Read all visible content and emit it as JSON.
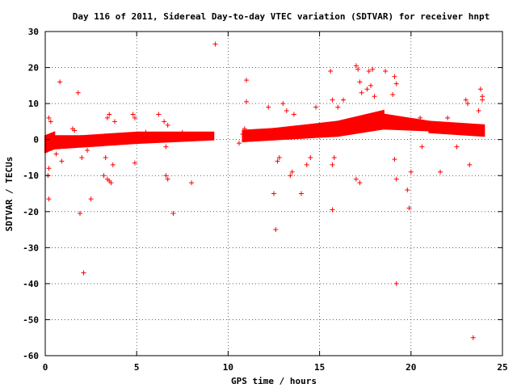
{
  "chart_data": {
    "type": "scatter",
    "title": "Day 116 of 2011, Sidereal Day-to-day VTEC variation (SDTVAR) for receiver hnpt",
    "xlabel": "GPS time / hours",
    "ylabel": "SDTVAR / TECUs",
    "xlim": [
      0,
      25
    ],
    "ylim": [
      -60,
      30
    ],
    "xticks": [
      0,
      5,
      10,
      15,
      20,
      25
    ],
    "yticks": [
      -60,
      -50,
      -40,
      -30,
      -20,
      -10,
      0,
      10,
      20,
      30
    ],
    "grid": true,
    "marker": "+",
    "color": "#ff0000",
    "bands": [
      {
        "x": [
          0.0,
          0.5
        ],
        "y_low": [
          -3.5,
          -2.5
        ],
        "y_high": [
          1.0,
          2.0
        ]
      },
      {
        "x": [
          0.5,
          2.0
        ],
        "y_low": [
          -2.5,
          -2.0
        ],
        "y_high": [
          1.0,
          1.0
        ]
      },
      {
        "x": [
          2.0,
          5.0
        ],
        "y_low": [
          -2.0,
          -1.0
        ],
        "y_high": [
          1.0,
          2.0
        ]
      },
      {
        "x": [
          5.0,
          9.2
        ],
        "y_low": [
          -1.0,
          0.0
        ],
        "y_high": [
          2.0,
          2.0
        ]
      },
      {
        "x": [
          10.8,
          12.5
        ],
        "y_low": [
          -0.5,
          0.0
        ],
        "y_high": [
          2.5,
          3.0
        ]
      },
      {
        "x": [
          12.5,
          16.0
        ],
        "y_low": [
          0.0,
          1.0
        ],
        "y_high": [
          3.0,
          5.0
        ]
      },
      {
        "x": [
          16.0,
          18.5
        ],
        "y_low": [
          1.0,
          3.0
        ],
        "y_high": [
          5.0,
          8.0
        ]
      },
      {
        "x": [
          18.5,
          21.0
        ],
        "y_low": [
          3.0,
          2.5
        ],
        "y_high": [
          7.0,
          5.0
        ]
      },
      {
        "x": [
          21.0,
          24.0
        ],
        "y_low": [
          2.0,
          1.0
        ],
        "y_high": [
          5.0,
          4.0
        ]
      }
    ],
    "points": [
      [
        0.2,
        6
      ],
      [
        0.3,
        5
      ],
      [
        0.1,
        -3
      ],
      [
        0.2,
        -8
      ],
      [
        0.15,
        -10
      ],
      [
        0.2,
        -16.5
      ],
      [
        0.8,
        16
      ],
      [
        0.6,
        -4
      ],
      [
        0.9,
        -6
      ],
      [
        1.8,
        13
      ],
      [
        1.9,
        -20.5
      ],
      [
        2.1,
        -37
      ],
      [
        2.5,
        -16.5
      ],
      [
        1.5,
        3
      ],
      [
        1.6,
        2.5
      ],
      [
        2.0,
        -5
      ],
      [
        2.3,
        -3
      ],
      [
        3.2,
        -10
      ],
      [
        3.4,
        -11
      ],
      [
        3.5,
        -11.5
      ],
      [
        3.6,
        -12
      ],
      [
        3.5,
        7
      ],
      [
        3.4,
        6
      ],
      [
        3.7,
        -7
      ],
      [
        3.3,
        -5
      ],
      [
        3.8,
        5
      ],
      [
        4.8,
        7
      ],
      [
        4.9,
        6
      ],
      [
        4.9,
        -6.5
      ],
      [
        5.5,
        2
      ],
      [
        6.2,
        7
      ],
      [
        6.5,
        5
      ],
      [
        6.6,
        -2
      ],
      [
        6.7,
        4
      ],
      [
        6.6,
        -10
      ],
      [
        6.7,
        -11
      ],
      [
        7.0,
        -20.5
      ],
      [
        8.0,
        -12
      ],
      [
        7.2,
        0.5
      ],
      [
        7.5,
        2
      ],
      [
        9.3,
        26.5
      ],
      [
        10.6,
        -1
      ],
      [
        10.8,
        1.5
      ],
      [
        11.0,
        16.5
      ],
      [
        11.0,
        10.5
      ],
      [
        10.9,
        3
      ],
      [
        12.2,
        9
      ],
      [
        12.5,
        -15
      ],
      [
        12.6,
        -25
      ],
      [
        12.7,
        -6
      ],
      [
        12.8,
        -5
      ],
      [
        13.0,
        10
      ],
      [
        13.2,
        8
      ],
      [
        13.4,
        -10
      ],
      [
        13.5,
        -9
      ],
      [
        13.6,
        7
      ],
      [
        14.0,
        -15
      ],
      [
        14.3,
        -7
      ],
      [
        14.5,
        -5
      ],
      [
        14.8,
        9
      ],
      [
        15.6,
        19
      ],
      [
        15.7,
        11
      ],
      [
        15.7,
        -7
      ],
      [
        15.8,
        -5
      ],
      [
        15.7,
        -19.5
      ],
      [
        16.0,
        9
      ],
      [
        16.3,
        11
      ],
      [
        17.0,
        20.5
      ],
      [
        17.1,
        19.5
      ],
      [
        17.2,
        16
      ],
      [
        17.3,
        13
      ],
      [
        17.6,
        14
      ],
      [
        17.7,
        19
      ],
      [
        17.9,
        19.5
      ],
      [
        17.0,
        -11
      ],
      [
        17.2,
        -12
      ],
      [
        17.8,
        15
      ],
      [
        18.0,
        12
      ],
      [
        18.6,
        19
      ],
      [
        19.1,
        17.5
      ],
      [
        19.2,
        15.5
      ],
      [
        19.0,
        12.5
      ],
      [
        19.1,
        -5.5
      ],
      [
        19.2,
        -11
      ],
      [
        19.2,
        -40
      ],
      [
        19.8,
        -14
      ],
      [
        19.9,
        -19
      ],
      [
        20.0,
        -9
      ],
      [
        20.3,
        5
      ],
      [
        20.5,
        6
      ],
      [
        20.6,
        -2
      ],
      [
        21.0,
        4
      ],
      [
        21.6,
        -9
      ],
      [
        22.0,
        6
      ],
      [
        22.5,
        -2
      ],
      [
        23.0,
        11
      ],
      [
        23.1,
        10
      ],
      [
        23.2,
        -7
      ],
      [
        23.4,
        -55
      ],
      [
        23.8,
        14
      ],
      [
        23.9,
        12
      ],
      [
        23.9,
        11
      ],
      [
        23.7,
        8
      ]
    ]
  }
}
